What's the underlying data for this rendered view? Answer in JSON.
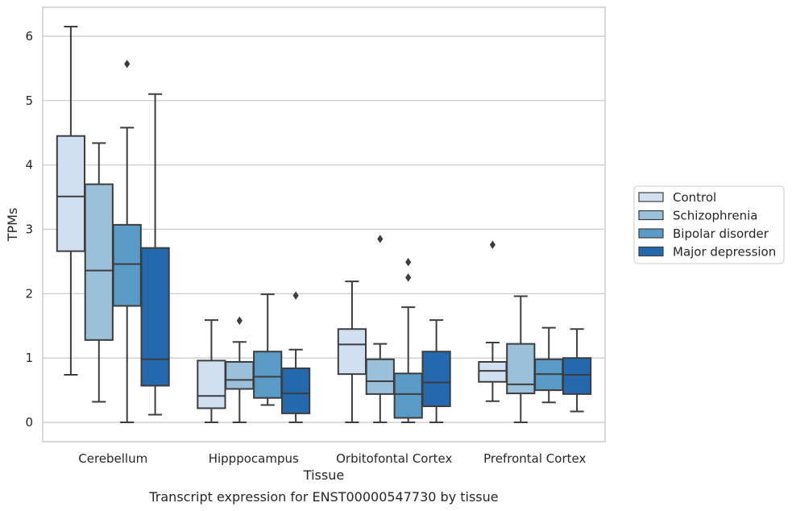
{
  "chart_data": {
    "type": "boxplot",
    "caption": "Transcript expression for ENST00000547730 by tissue",
    "xlabel": "Tissue",
    "ylabel": "TPMs",
    "ylim": [
      -0.3,
      6.45
    ],
    "yticks": [
      0,
      1,
      2,
      3,
      4,
      5,
      6
    ],
    "grid": "horizontal",
    "legend_position": "right",
    "categories": [
      "Cerebellum",
      "Hipppocampus",
      "Orbitofontal Cortex",
      "Prefrontal Cortex"
    ],
    "series": [
      {
        "name": "Control",
        "color": "#d0e0f0",
        "boxes": [
          {
            "whisker_low": 0.74,
            "q1": 2.66,
            "median": 3.51,
            "q3": 4.45,
            "whisker_high": 6.15,
            "outliers": []
          },
          {
            "whisker_low": 0.0,
            "q1": 0.22,
            "median": 0.41,
            "q3": 0.96,
            "whisker_high": 1.59,
            "outliers": []
          },
          {
            "whisker_low": 0.0,
            "q1": 0.75,
            "median": 1.21,
            "q3": 1.45,
            "whisker_high": 2.19,
            "outliers": []
          },
          {
            "whisker_low": 0.33,
            "q1": 0.63,
            "median": 0.8,
            "q3": 0.94,
            "whisker_high": 1.24,
            "outliers": [
              2.76
            ]
          }
        ]
      },
      {
        "name": "Schizophrenia",
        "color": "#9bc0da",
        "boxes": [
          {
            "whisker_low": 0.32,
            "q1": 1.28,
            "median": 2.36,
            "q3": 3.7,
            "whisker_high": 4.34,
            "outliers": []
          },
          {
            "whisker_low": 0.0,
            "q1": 0.52,
            "median": 0.66,
            "q3": 0.94,
            "whisker_high": 1.25,
            "outliers": [
              1.58
            ]
          },
          {
            "whisker_low": 0.0,
            "q1": 0.44,
            "median": 0.64,
            "q3": 0.98,
            "whisker_high": 1.22,
            "outliers": [
              2.85
            ]
          },
          {
            "whisker_low": 0.0,
            "q1": 0.45,
            "median": 0.59,
            "q3": 1.22,
            "whisker_high": 1.96,
            "outliers": []
          }
        ]
      },
      {
        "name": "Bipolar disorder",
        "color": "#5a9ac6",
        "boxes": [
          {
            "whisker_low": 0.0,
            "q1": 1.81,
            "median": 2.46,
            "q3": 3.07,
            "whisker_high": 4.58,
            "outliers": [
              5.57
            ]
          },
          {
            "whisker_low": 0.27,
            "q1": 0.38,
            "median": 0.71,
            "q3": 1.1,
            "whisker_high": 1.99,
            "outliers": []
          },
          {
            "whisker_low": 0.0,
            "q1": 0.07,
            "median": 0.44,
            "q3": 0.76,
            "whisker_high": 1.79,
            "outliers": [
              2.49,
              2.25
            ]
          },
          {
            "whisker_low": 0.31,
            "q1": 0.5,
            "median": 0.75,
            "q3": 0.98,
            "whisker_high": 1.47,
            "outliers": []
          }
        ]
      },
      {
        "name": "Major depression",
        "color": "#2468ad",
        "boxes": [
          {
            "whisker_low": 0.12,
            "q1": 0.57,
            "median": 0.98,
            "q3": 2.71,
            "whisker_high": 5.1,
            "outliers": []
          },
          {
            "whisker_low": 0.0,
            "q1": 0.14,
            "median": 0.45,
            "q3": 0.84,
            "whisker_high": 1.13,
            "outliers": [
              1.97
            ]
          },
          {
            "whisker_low": 0.0,
            "q1": 0.25,
            "median": 0.62,
            "q3": 1.1,
            "whisker_high": 1.59,
            "outliers": []
          },
          {
            "whisker_low": 0.17,
            "q1": 0.44,
            "median": 0.74,
            "q3": 1.0,
            "whisker_high": 1.45,
            "outliers": []
          }
        ]
      }
    ]
  }
}
